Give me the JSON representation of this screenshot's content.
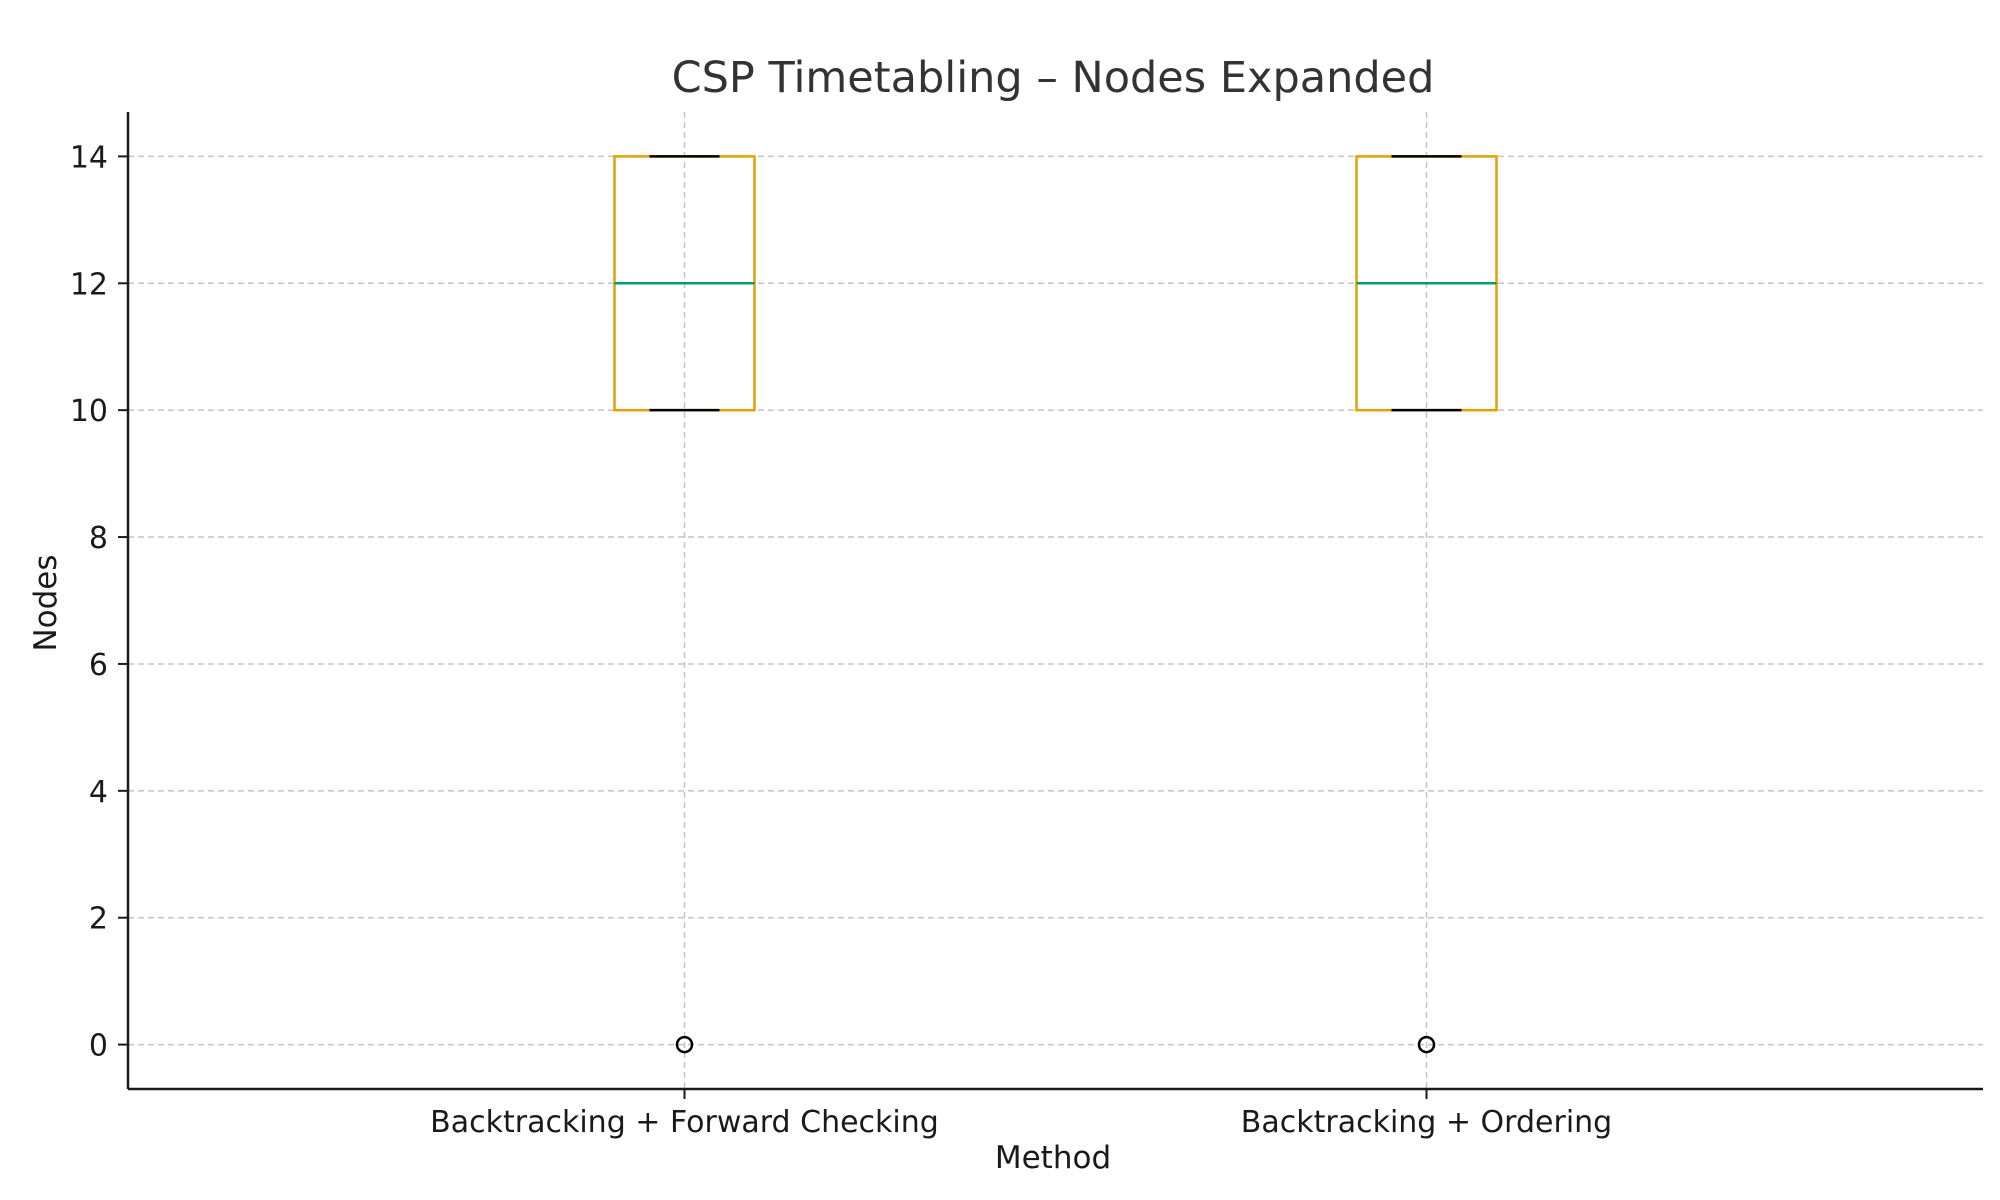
{
  "chart_data": {
    "type": "box",
    "title": "CSP Timetabling – Nodes Expanded",
    "xlabel": "Method",
    "ylabel": "Nodes",
    "ylim": [
      -0.7,
      14.7
    ],
    "yticks": [
      0,
      2,
      4,
      6,
      8,
      10,
      12,
      14
    ],
    "grid": true,
    "categories": [
      "Backtracking + Forward Checking",
      "Backtracking + Ordering"
    ],
    "boxes": [
      {
        "q1": 10,
        "median": 12,
        "q3": 14,
        "whisker_low": 10,
        "whisker_high": 14,
        "outliers": [
          0
        ]
      },
      {
        "q1": 10,
        "median": 12,
        "q3": 14,
        "whisker_low": 10,
        "whisker_high": 14,
        "outliers": [
          0
        ]
      }
    ],
    "colors": {
      "box": "#E69F00",
      "median": "#009E73",
      "whisker": "#000000",
      "outlier": "#000000"
    }
  }
}
